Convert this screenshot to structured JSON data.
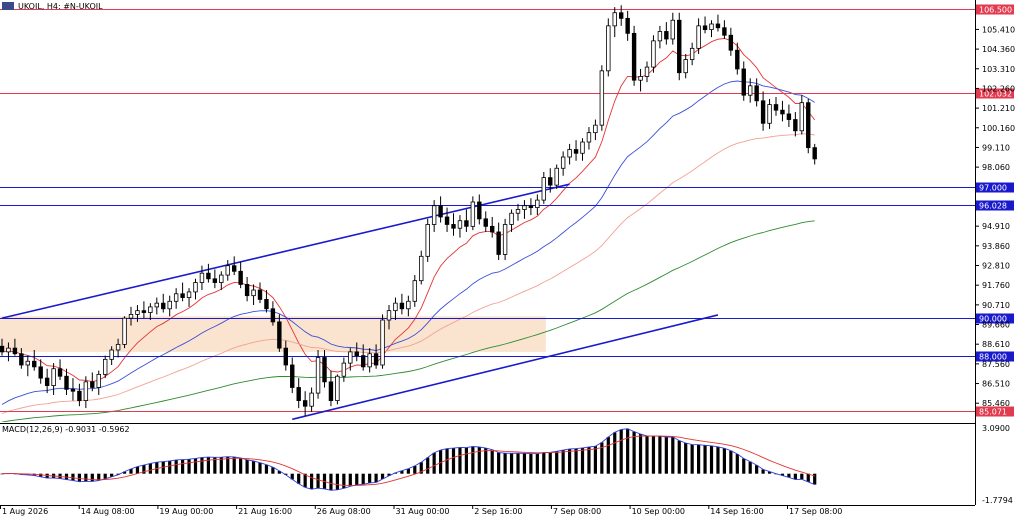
{
  "header": {
    "symbol_text": "UKOIL, H4:  #N-UKOIL"
  },
  "indicator": {
    "label": "MACD(12,26,9) -0.9031 -0.5962"
  },
  "colors": {
    "bull": "#ffffff",
    "bear": "#000000",
    "resistance": "#e23a4e",
    "support": "#1a1acd",
    "channel": "#1a1acd",
    "ma_fast": "#e53333",
    "ma_mid": "#3a4fd6",
    "ma_slow": "#f2a294",
    "ma_long": "#2e8b2e",
    "macd_line": "#2f3fd9",
    "signal_line": "#e53333",
    "zone_fill": "#fae3cf"
  },
  "chart_data": {
    "type": "candlestick",
    "symbol": "UKOIL",
    "timeframe": "H4",
    "y_ticks": [
      "105.410",
      "104.360",
      "103.310",
      "102.260",
      "101.210",
      "100.160",
      "99.110",
      "98.060",
      "94.910",
      "93.860",
      "92.810",
      "91.760",
      "90.710",
      "89.660",
      "88.610",
      "87.560",
      "86.510",
      "85.460"
    ],
    "x_ticks": [
      "1 Aug 2026",
      "14 Aug 08:00",
      "19 Aug 00:00",
      "21 Aug 16:00",
      "26 Aug 08:00",
      "31 Aug 00:00",
      "2 Sep 16:00",
      "7 Sep 08:00",
      "10 Sep 00:00",
      "14 Sep 16:00",
      "17 Sep 08:00"
    ],
    "ylim": [
      84.55,
      106.85
    ],
    "levels": [
      {
        "value": 106.5,
        "label": "106.500",
        "kind": "resistance"
      },
      {
        "value": 102.032,
        "label": "102.032",
        "kind": "resistance"
      },
      {
        "value": 97.0,
        "label": "97.000",
        "kind": "support"
      },
      {
        "value": 96.028,
        "label": "96.028",
        "kind": "support"
      },
      {
        "value": 90.0,
        "label": "90.000",
        "kind": "support"
      },
      {
        "value": 88.0,
        "label": "88.000",
        "kind": "support"
      },
      {
        "value": 85.071,
        "label": "85.071",
        "kind": "resistance"
      }
    ],
    "channel": {
      "upper": [
        [
          0,
          90.0
        ],
        [
          88,
          97.15
        ]
      ],
      "lower": [
        [
          45,
          84.6
        ],
        [
          111,
          90.17
        ]
      ]
    },
    "zone": {
      "x0": 0,
      "x1": 84,
      "y_low": 88.2,
      "y_high": 90.1
    },
    "candles": [
      [
        88.5,
        88.9,
        88.0,
        88.2
      ],
      [
        88.2,
        88.7,
        87.7,
        88.4
      ],
      [
        88.4,
        88.9,
        88.0,
        88.1
      ],
      [
        88.1,
        88.4,
        87.3,
        87.5
      ],
      [
        87.5,
        88.0,
        86.9,
        87.7
      ],
      [
        87.7,
        88.3,
        87.2,
        87.4
      ],
      [
        87.4,
        87.8,
        86.5,
        86.8
      ],
      [
        86.8,
        87.3,
        86.0,
        86.4
      ],
      [
        86.4,
        87.6,
        85.9,
        87.3
      ],
      [
        87.3,
        87.8,
        86.7,
        86.9
      ],
      [
        86.9,
        87.3,
        85.9,
        86.2
      ],
      [
        86.2,
        86.8,
        85.6,
        86.1
      ],
      [
        86.1,
        86.5,
        85.3,
        85.6
      ],
      [
        85.6,
        86.9,
        85.2,
        86.6
      ],
      [
        86.6,
        87.1,
        86.1,
        86.3
      ],
      [
        86.3,
        87.2,
        85.9,
        87.0
      ],
      [
        87.0,
        88.0,
        86.8,
        87.8
      ],
      [
        87.8,
        88.5,
        87.5,
        88.3
      ],
      [
        88.3,
        88.9,
        87.9,
        88.6
      ],
      [
        88.6,
        90.1,
        88.4,
        90.0
      ],
      [
        90.0,
        90.6,
        89.6,
        90.2
      ],
      [
        90.2,
        90.7,
        89.8,
        90.4
      ],
      [
        90.4,
        90.9,
        90.0,
        90.3
      ],
      [
        90.3,
        90.8,
        89.9,
        90.6
      ],
      [
        90.6,
        91.1,
        90.2,
        90.8
      ],
      [
        90.8,
        91.3,
        90.3,
        90.5
      ],
      [
        90.5,
        91.2,
        90.1,
        90.9
      ],
      [
        90.9,
        91.6,
        90.5,
        91.3
      ],
      [
        91.3,
        91.9,
        90.9,
        91.1
      ],
      [
        91.1,
        91.6,
        90.6,
        91.4
      ],
      [
        91.4,
        92.1,
        91.0,
        91.9
      ],
      [
        91.9,
        92.8,
        91.5,
        92.4
      ],
      [
        92.4,
        92.9,
        91.9,
        92.1
      ],
      [
        92.1,
        92.6,
        91.6,
        91.9
      ],
      [
        91.9,
        92.5,
        91.5,
        92.3
      ],
      [
        92.3,
        93.1,
        92.0,
        92.8
      ],
      [
        92.8,
        93.3,
        92.3,
        92.5
      ],
      [
        92.5,
        93.0,
        91.6,
        91.8
      ],
      [
        91.8,
        92.2,
        90.9,
        91.2
      ],
      [
        91.2,
        91.8,
        90.7,
        91.5
      ],
      [
        91.5,
        91.9,
        90.8,
        91.0
      ],
      [
        91.0,
        91.5,
        90.3,
        90.5
      ],
      [
        90.5,
        90.9,
        89.6,
        89.8
      ],
      [
        89.8,
        90.2,
        88.2,
        88.4
      ],
      [
        88.4,
        88.8,
        87.2,
        87.5
      ],
      [
        87.5,
        87.9,
        86.0,
        86.3
      ],
      [
        86.3,
        86.8,
        85.2,
        85.6
      ],
      [
        85.6,
        86.1,
        84.8,
        85.3
      ],
      [
        85.3,
        86.3,
        85.0,
        86.0
      ],
      [
        86.0,
        88.3,
        85.7,
        87.9
      ],
      [
        87.9,
        88.3,
        86.3,
        86.6
      ],
      [
        86.6,
        87.2,
        85.3,
        85.6
      ],
      [
        85.6,
        87.0,
        85.4,
        86.9
      ],
      [
        86.9,
        87.9,
        86.6,
        87.6
      ],
      [
        87.6,
        88.4,
        87.2,
        88.2
      ],
      [
        88.2,
        88.7,
        87.7,
        88.0
      ],
      [
        88.0,
        88.6,
        87.2,
        87.4
      ],
      [
        87.4,
        88.4,
        87.1,
        88.1
      ],
      [
        88.1,
        88.6,
        87.3,
        87.5
      ],
      [
        87.5,
        90.2,
        87.3,
        89.9
      ],
      [
        89.9,
        90.7,
        89.4,
        90.4
      ],
      [
        90.4,
        91.1,
        89.9,
        90.8
      ],
      [
        90.8,
        91.3,
        90.2,
        90.5
      ],
      [
        90.5,
        91.2,
        90.1,
        90.9
      ],
      [
        90.9,
        92.3,
        90.6,
        92.0
      ],
      [
        92.0,
        93.6,
        91.8,
        93.3
      ],
      [
        93.3,
        95.3,
        93.0,
        95.0
      ],
      [
        95.0,
        96.3,
        94.6,
        96.0
      ],
      [
        96.0,
        96.5,
        95.1,
        95.4
      ],
      [
        95.4,
        95.9,
        94.6,
        95.0
      ],
      [
        95.0,
        95.6,
        94.4,
        94.8
      ],
      [
        94.8,
        95.5,
        94.3,
        95.2
      ],
      [
        95.2,
        95.8,
        94.6,
        94.9
      ],
      [
        94.9,
        96.5,
        94.7,
        96.2
      ],
      [
        96.2,
        96.6,
        95.0,
        95.3
      ],
      [
        95.3,
        95.7,
        94.6,
        94.9
      ],
      [
        94.9,
        95.4,
        94.3,
        94.6
      ],
      [
        94.6,
        95.1,
        93.1,
        93.4
      ],
      [
        93.4,
        95.3,
        93.1,
        95.0
      ],
      [
        95.0,
        95.8,
        94.6,
        95.6
      ],
      [
        95.6,
        96.1,
        95.2,
        95.8
      ],
      [
        95.8,
        96.3,
        95.3,
        96.0
      ],
      [
        96.0,
        96.4,
        95.5,
        95.9
      ],
      [
        95.9,
        96.6,
        95.5,
        96.3
      ],
      [
        96.3,
        97.8,
        96.1,
        97.5
      ],
      [
        97.5,
        98.0,
        96.7,
        97.1
      ],
      [
        97.1,
        98.2,
        96.9,
        98.0
      ],
      [
        98.0,
        98.9,
        97.6,
        98.6
      ],
      [
        98.6,
        99.3,
        98.2,
        99.0
      ],
      [
        99.0,
        99.5,
        98.4,
        98.8
      ],
      [
        98.8,
        99.6,
        98.4,
        99.4
      ],
      [
        99.4,
        100.2,
        99.0,
        99.9
      ],
      [
        99.9,
        100.6,
        99.5,
        100.3
      ],
      [
        100.3,
        103.5,
        100.0,
        103.2
      ],
      [
        103.2,
        106.0,
        102.9,
        105.6
      ],
      [
        105.6,
        106.6,
        105.0,
        106.3
      ],
      [
        106.3,
        106.7,
        105.6,
        106.0
      ],
      [
        106.0,
        106.4,
        104.8,
        105.2
      ],
      [
        105.2,
        105.6,
        102.4,
        102.7
      ],
      [
        102.7,
        103.3,
        102.1,
        102.9
      ],
      [
        102.9,
        103.7,
        102.6,
        103.4
      ],
      [
        103.4,
        105.1,
        103.1,
        104.8
      ],
      [
        104.8,
        105.6,
        104.4,
        105.3
      ],
      [
        105.3,
        105.8,
        104.6,
        104.9
      ],
      [
        104.9,
        106.3,
        104.6,
        105.9
      ],
      [
        105.9,
        106.3,
        102.7,
        103.1
      ],
      [
        103.1,
        104.1,
        102.8,
        103.8
      ],
      [
        103.8,
        104.7,
        103.5,
        104.4
      ],
      [
        104.4,
        106.0,
        104.1,
        105.6
      ],
      [
        105.6,
        106.1,
        105.2,
        105.4
      ],
      [
        105.4,
        105.9,
        105.0,
        105.7
      ],
      [
        105.7,
        106.2,
        105.3,
        105.5
      ],
      [
        105.5,
        105.9,
        104.9,
        105.1
      ],
      [
        105.1,
        105.5,
        104.0,
        104.3
      ],
      [
        104.3,
        104.7,
        103.0,
        103.3
      ],
      [
        103.3,
        103.7,
        101.6,
        101.9
      ],
      [
        101.9,
        102.8,
        101.5,
        102.4
      ],
      [
        102.4,
        102.8,
        101.3,
        101.6
      ],
      [
        101.6,
        102.1,
        100.0,
        100.4
      ],
      [
        100.4,
        101.7,
        100.1,
        101.4
      ],
      [
        101.4,
        101.8,
        100.8,
        101.1
      ],
      [
        101.1,
        101.6,
        100.5,
        100.9
      ],
      [
        100.9,
        101.4,
        100.2,
        100.6
      ],
      [
        100.6,
        101.0,
        99.7,
        100.0
      ],
      [
        100.0,
        101.9,
        99.8,
        101.5
      ],
      [
        101.5,
        101.7,
        98.8,
        99.1
      ],
      [
        99.1,
        99.3,
        98.2,
        98.5
      ]
    ]
  }
}
